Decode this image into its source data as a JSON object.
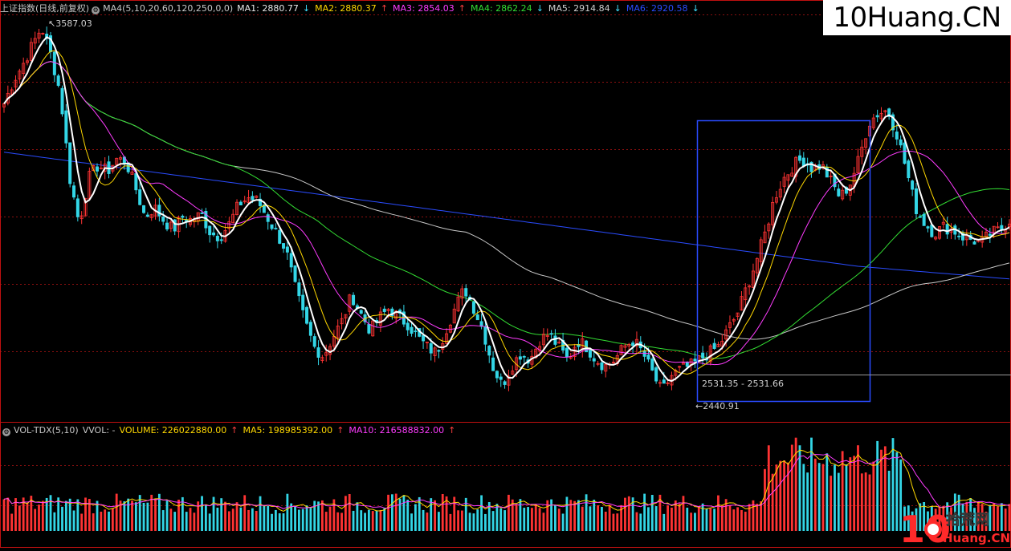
{
  "price_header": {
    "title": "上证指数(日线,前复权)",
    "ma_group": "MA4(5,10,20,60,120,250,0,0)",
    "items": [
      {
        "label": "MA1: 2880.77",
        "dir": "down",
        "color": "#e8e8e8"
      },
      {
        "label": "MA2: 2880.37",
        "dir": "up",
        "color": "#ffd800"
      },
      {
        "label": "MA3: 2854.03",
        "dir": "up",
        "color": "#ff3cff"
      },
      {
        "label": "MA4: 2862.24",
        "dir": "down",
        "color": "#33dd33"
      },
      {
        "label": "MA5: 2914.84",
        "dir": "down",
        "color": "#d0d0d0"
      },
      {
        "label": "MA6: 2920.58",
        "dir": "down",
        "color": "#2a4cff"
      }
    ]
  },
  "volume_header": {
    "title": "VOL-TDX(5,10)",
    "vvol": "VVOL: -",
    "items": [
      {
        "label": "VOLUME: 226022880.00",
        "dir": "up",
        "color": "#ffd800"
      },
      {
        "label": "MA5: 198985392.00",
        "dir": "up",
        "color": "#ffd800"
      },
      {
        "label": "MA10: 216588832.00",
        "dir": "up",
        "color": "#ff3cff"
      }
    ]
  },
  "watermark": "10Huang.CN",
  "logo": {
    "number": "10",
    "site": "Huang.CN",
    "name": "拾荒网"
  },
  "colors": {
    "up": "#ff3333",
    "down": "#33d6e6",
    "grid": "#8a1010",
    "box": "#2a4cff"
  },
  "chart_data": {
    "type": "candlestick",
    "title": "上证指数(日线,前复权)",
    "high_label": "3587.03",
    "low_label": "2440.91",
    "range_label": "2531.35 - 2531.66",
    "close_path": [
      3350,
      3420,
      3470,
      3530,
      3587,
      3500,
      3380,
      3120,
      2980,
      3120,
      3160,
      3140,
      3180,
      3170,
      3090,
      3000,
      3030,
      2990,
      2960,
      3000,
      2990,
      3010,
      2950,
      2940,
      2980,
      3040,
      3060,
      3050,
      3000,
      2950,
      2900,
      2780,
      2680,
      2600,
      2570,
      2630,
      2680,
      2760,
      2700,
      2650,
      2690,
      2720,
      2690,
      2670,
      2630,
      2600,
      2580,
      2650,
      2720,
      2780,
      2720,
      2650,
      2540,
      2480,
      2540,
      2580,
      2560,
      2620,
      2640,
      2600,
      2560,
      2620,
      2600,
      2560,
      2540,
      2560,
      2600,
      2620,
      2580,
      2520,
      2460,
      2510,
      2530,
      2540,
      2560,
      2580,
      2600,
      2650,
      2700,
      2780,
      2860,
      2950,
      3060,
      3120,
      3160,
      3180,
      3150,
      3160,
      3110,
      3060,
      3100,
      3180,
      3290,
      3320,
      3330,
      3260,
      3150,
      3030,
      2980,
      2950,
      2970,
      2960,
      2940,
      2930,
      2920,
      2950,
      2960,
      2990
    ],
    "moving_averages": [
      {
        "name": "MA1",
        "value": 2880.77
      },
      {
        "name": "MA2",
        "value": 2880.37
      },
      {
        "name": "MA3",
        "value": 2854.03
      },
      {
        "name": "MA4",
        "value": 2862.24
      },
      {
        "name": "MA5",
        "value": 2914.84
      },
      {
        "name": "MA6",
        "value": 2920.58
      }
    ],
    "volume": {
      "VOLUME": 226022880.0,
      "MA5": 198985392.0,
      "MA10": 216588832.0
    }
  }
}
